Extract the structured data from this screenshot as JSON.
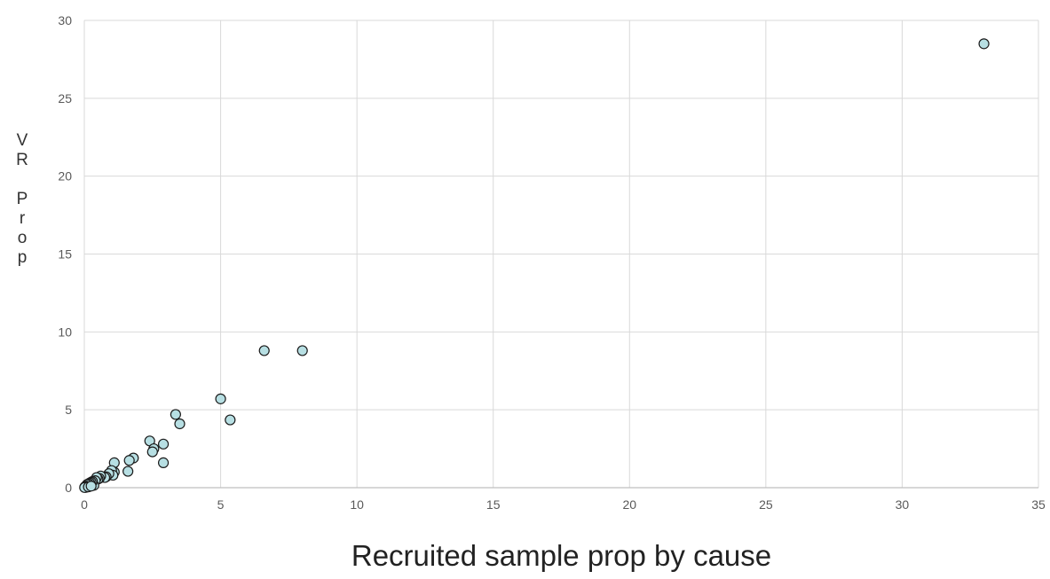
{
  "chart_data": {
    "type": "scatter",
    "title": "",
    "xlabel": "Recruited sample prop by cause",
    "ylabel": "VR Prop",
    "xlim": [
      0,
      35
    ],
    "ylim": [
      0,
      30
    ],
    "x_ticks": [
      "0",
      "5",
      "10",
      "15",
      "20",
      "25",
      "30",
      "35"
    ],
    "y_ticks": [
      "0",
      "5",
      "10",
      "15",
      "20",
      "25",
      "30"
    ],
    "grid": true,
    "legend": "none",
    "colors": {
      "marker_fill": "#b7dfe3",
      "marker_stroke": "#1a1a1a",
      "grid": "#d9d9d9",
      "axis": "#bfbfbf",
      "tick_text": "#595959"
    },
    "series": [
      {
        "points": [
          [
            33.0,
            28.5
          ],
          [
            8.0,
            8.8
          ],
          [
            6.6,
            8.8
          ],
          [
            5.0,
            5.7
          ],
          [
            5.35,
            4.35
          ],
          [
            3.35,
            4.7
          ],
          [
            3.5,
            4.1
          ],
          [
            2.4,
            3.0
          ],
          [
            2.9,
            2.8
          ],
          [
            2.55,
            2.5
          ],
          [
            2.5,
            2.3
          ],
          [
            2.9,
            1.6
          ],
          [
            1.8,
            1.9
          ],
          [
            1.65,
            1.75
          ],
          [
            1.6,
            1.05
          ],
          [
            1.1,
            1.6
          ],
          [
            1.1,
            1.0
          ],
          [
            1.0,
            1.1
          ],
          [
            1.05,
            0.8
          ],
          [
            0.9,
            0.9
          ],
          [
            0.8,
            0.7
          ],
          [
            0.75,
            0.65
          ],
          [
            0.6,
            0.75
          ],
          [
            0.55,
            0.6
          ],
          [
            0.5,
            0.55
          ],
          [
            0.45,
            0.65
          ],
          [
            0.4,
            0.45
          ],
          [
            0.35,
            0.15
          ],
          [
            0.3,
            0.4
          ],
          [
            0.25,
            0.35
          ],
          [
            0.2,
            0.3
          ],
          [
            0.2,
            0.15
          ],
          [
            0.15,
            0.25
          ],
          [
            0.12,
            0.1
          ],
          [
            0.1,
            0.2
          ],
          [
            0.08,
            0.05
          ],
          [
            0.06,
            0.1
          ],
          [
            0.05,
            0.02
          ],
          [
            0.04,
            0.06
          ],
          [
            0.03,
            0.03
          ],
          [
            0.02,
            0.05
          ],
          [
            0.01,
            0.01
          ],
          [
            0.15,
            0.05
          ],
          [
            0.25,
            0.1
          ]
        ]
      }
    ]
  }
}
